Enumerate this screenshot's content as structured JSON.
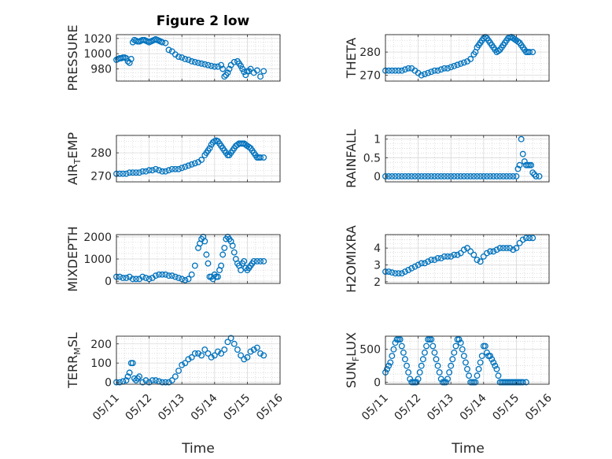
{
  "figure": {
    "title": "Figure 2 low",
    "marker_color": "#0072BD"
  },
  "x_axis": {
    "label": "Time",
    "tick_labels": [
      "05/11",
      "05/12",
      "05/13",
      "05/14",
      "05/15",
      "05/16"
    ],
    "range_days": [
      0,
      5
    ]
  },
  "chart_data": [
    {
      "type": "scatter",
      "name": "pressure",
      "ylabel": {
        "pre": "PRESSURE",
        "sub": "",
        "post": ""
      },
      "ylim": [
        964,
        1025
      ],
      "yticks": [
        980,
        1000,
        1020
      ],
      "grid": true,
      "x": [
        0.0,
        0.05,
        0.1,
        0.15,
        0.2,
        0.25,
        0.3,
        0.35,
        0.4,
        0.45,
        0.5,
        0.55,
        0.6,
        0.65,
        0.7,
        0.75,
        0.8,
        0.85,
        0.9,
        0.95,
        1.0,
        1.05,
        1.1,
        1.15,
        1.2,
        1.25,
        1.3,
        1.35,
        1.4,
        1.5,
        1.6,
        1.7,
        1.8,
        1.9,
        2.0,
        2.1,
        2.2,
        2.3,
        2.4,
        2.5,
        2.6,
        2.7,
        2.8,
        2.9,
        3.0,
        3.1,
        3.2,
        3.25,
        3.3,
        3.35,
        3.4,
        3.45,
        3.5,
        3.6,
        3.7,
        3.75,
        3.8,
        3.85,
        3.9,
        3.95,
        4.0,
        4.05,
        4.1,
        4.2,
        4.3,
        4.4,
        4.5
      ],
      "y": [
        992,
        993,
        994,
        994,
        995,
        995,
        994,
        990,
        988,
        993,
        1015,
        1018,
        1017,
        1016,
        1016,
        1017,
        1018,
        1018,
        1017,
        1016,
        1015,
        1016,
        1017,
        1018,
        1019,
        1018,
        1017,
        1016,
        1015,
        1014,
        1005,
        1003,
        999,
        996,
        995,
        993,
        992,
        990,
        989,
        988,
        987,
        986,
        985,
        984,
        983,
        983,
        985,
        980,
        970,
        972,
        975,
        980,
        985,
        989,
        990,
        987,
        984,
        980,
        976,
        972,
        977,
        977,
        980,
        975,
        978,
        970,
        977
      ]
    },
    {
      "type": "scatter",
      "name": "theta",
      "ylabel": {
        "pre": "THETA",
        "sub": "",
        "post": ""
      },
      "ylim": [
        267.5,
        287.5
      ],
      "yticks": [
        270,
        280
      ],
      "grid": true,
      "x": [
        0.0,
        0.1,
        0.2,
        0.3,
        0.4,
        0.5,
        0.6,
        0.7,
        0.8,
        0.9,
        1.0,
        1.1,
        1.2,
        1.3,
        1.4,
        1.5,
        1.6,
        1.7,
        1.8,
        1.9,
        2.0,
        2.1,
        2.2,
        2.3,
        2.4,
        2.5,
        2.6,
        2.7,
        2.75,
        2.8,
        2.85,
        2.9,
        2.95,
        3.0,
        3.05,
        3.1,
        3.15,
        3.2,
        3.25,
        3.3,
        3.35,
        3.4,
        3.45,
        3.5,
        3.55,
        3.6,
        3.65,
        3.7,
        3.75,
        3.8,
        3.85,
        3.9,
        3.95,
        4.0,
        4.05,
        4.1,
        4.15,
        4.2,
        4.25,
        4.3,
        4.35,
        4.4,
        4.5
      ],
      "y": [
        272,
        272,
        272,
        272,
        272,
        272,
        272.5,
        273,
        273,
        272,
        271,
        270,
        270.5,
        271,
        271.5,
        272,
        272,
        272.5,
        273,
        273,
        273.5,
        274,
        274.5,
        275,
        275.5,
        276,
        277,
        279,
        280,
        282,
        283,
        284,
        285,
        286,
        286.5,
        286,
        285,
        284,
        283,
        282,
        281,
        280,
        280.5,
        281,
        282,
        283,
        284,
        285,
        286,
        286.3,
        286.5,
        286,
        285.5,
        285,
        284.5,
        284,
        283,
        282,
        281,
        280,
        280,
        280,
        280
      ]
    },
    {
      "type": "scatter",
      "name": "air_temp",
      "ylabel": {
        "pre": "AIR",
        "sub": "T",
        "post": "EMP"
      },
      "ylim": [
        267.5,
        287.5
      ],
      "yticks": [
        270,
        280
      ],
      "grid": true,
      "x": [
        0.0,
        0.1,
        0.2,
        0.3,
        0.4,
        0.5,
        0.6,
        0.7,
        0.8,
        0.9,
        1.0,
        1.1,
        1.2,
        1.3,
        1.4,
        1.5,
        1.6,
        1.7,
        1.8,
        1.9,
        2.0,
        2.1,
        2.2,
        2.3,
        2.4,
        2.5,
        2.6,
        2.7,
        2.75,
        2.8,
        2.85,
        2.9,
        2.95,
        3.0,
        3.05,
        3.1,
        3.15,
        3.2,
        3.25,
        3.3,
        3.35,
        3.4,
        3.45,
        3.5,
        3.55,
        3.6,
        3.65,
        3.7,
        3.75,
        3.8,
        3.85,
        3.9,
        3.95,
        4.0,
        4.05,
        4.1,
        4.15,
        4.2,
        4.25,
        4.3,
        4.35,
        4.4,
        4.5
      ],
      "y": [
        271,
        271,
        271,
        271,
        271.5,
        271.5,
        271.5,
        271.5,
        272,
        272,
        272.5,
        272.5,
        273,
        272.5,
        272,
        272,
        272.5,
        273,
        273,
        273,
        273.5,
        274,
        274.5,
        275,
        275.5,
        276,
        277,
        279,
        280,
        281,
        282,
        283.5,
        284.5,
        285,
        285.3,
        285,
        284,
        283,
        282,
        281,
        280,
        279,
        279,
        280,
        281,
        282,
        283,
        283.5,
        284,
        284,
        284,
        284,
        283.5,
        283,
        282.5,
        282,
        281,
        280,
        279,
        278,
        278,
        278,
        278
      ]
    },
    {
      "type": "scatter",
      "name": "rainfall",
      "ylabel": {
        "pre": "RAINFALL",
        "sub": "",
        "post": ""
      },
      "ylim": [
        -0.15,
        1.1
      ],
      "yticks": [
        0,
        0.5,
        1
      ],
      "grid": true,
      "x": [
        0.0,
        0.1,
        0.2,
        0.3,
        0.4,
        0.5,
        0.6,
        0.7,
        0.8,
        0.9,
        1.0,
        1.1,
        1.2,
        1.3,
        1.4,
        1.5,
        1.6,
        1.7,
        1.8,
        1.9,
        2.0,
        2.1,
        2.2,
        2.3,
        2.4,
        2.5,
        2.6,
        2.7,
        2.8,
        2.9,
        3.0,
        3.1,
        3.2,
        3.3,
        3.4,
        3.5,
        3.6,
        3.7,
        3.8,
        3.9,
        4.0,
        4.05,
        4.1,
        4.15,
        4.2,
        4.25,
        4.3,
        4.35,
        4.4,
        4.45,
        4.5,
        4.55,
        4.6,
        4.7
      ],
      "y": [
        0,
        0,
        0,
        0,
        0,
        0,
        0,
        0,
        0,
        0,
        0,
        0,
        0,
        0,
        0,
        0,
        0,
        0,
        0,
        0,
        0,
        0,
        0,
        0,
        0,
        0,
        0,
        0,
        0,
        0,
        0,
        0,
        0,
        0,
        0,
        0,
        0,
        0,
        0,
        0,
        0,
        0.2,
        0.3,
        1.0,
        0.6,
        0.4,
        0.3,
        0.3,
        0.3,
        0.3,
        0.1,
        0.05,
        0,
        0
      ]
    },
    {
      "type": "scatter",
      "name": "mixdepth",
      "ylabel": {
        "pre": "MIXDEPTH",
        "sub": "",
        "post": ""
      },
      "ylim": [
        -100,
        2100
      ],
      "yticks": [
        0,
        1000,
        2000
      ],
      "grid": true,
      "x": [
        0.0,
        0.1,
        0.2,
        0.3,
        0.4,
        0.5,
        0.6,
        0.7,
        0.8,
        0.9,
        1.0,
        1.1,
        1.2,
        1.3,
        1.4,
        1.5,
        1.6,
        1.7,
        1.8,
        1.9,
        2.0,
        2.1,
        2.2,
        2.3,
        2.4,
        2.5,
        2.55,
        2.6,
        2.65,
        2.7,
        2.75,
        2.8,
        2.85,
        2.9,
        2.95,
        3.0,
        3.05,
        3.1,
        3.15,
        3.2,
        3.25,
        3.3,
        3.35,
        3.4,
        3.45,
        3.5,
        3.55,
        3.6,
        3.65,
        3.7,
        3.75,
        3.8,
        3.85,
        3.9,
        3.95,
        4.0,
        4.05,
        4.1,
        4.15,
        4.2,
        4.3,
        4.4,
        4.5
      ],
      "y": [
        200,
        200,
        150,
        150,
        200,
        100,
        100,
        100,
        200,
        150,
        100,
        150,
        250,
        300,
        300,
        300,
        250,
        250,
        200,
        150,
        100,
        50,
        100,
        300,
        700,
        1500,
        1700,
        1900,
        2000,
        1800,
        1200,
        800,
        200,
        200,
        100,
        300,
        200,
        200,
        500,
        700,
        1200,
        1500,
        1900,
        2000,
        1900,
        1800,
        1600,
        1300,
        1000,
        800,
        700,
        500,
        800,
        900,
        600,
        500,
        600,
        700,
        800,
        900,
        900,
        900,
        900
      ]
    },
    {
      "type": "scatter",
      "name": "h2omixra",
      "ylabel": {
        "pre": "H2OMIXRA",
        "sub": "",
        "post": ""
      },
      "ylim": [
        1.9,
        4.8
      ],
      "yticks": [
        2,
        3,
        4
      ],
      "grid": true,
      "x": [
        0.0,
        0.1,
        0.2,
        0.3,
        0.4,
        0.5,
        0.6,
        0.7,
        0.8,
        0.9,
        1.0,
        1.1,
        1.2,
        1.3,
        1.4,
        1.5,
        1.6,
        1.7,
        1.8,
        1.9,
        2.0,
        2.1,
        2.2,
        2.3,
        2.4,
        2.5,
        2.6,
        2.7,
        2.8,
        2.9,
        3.0,
        3.1,
        3.2,
        3.3,
        3.4,
        3.5,
        3.6,
        3.7,
        3.8,
        3.9,
        4.0,
        4.1,
        4.2,
        4.3,
        4.4,
        4.5
      ],
      "y": [
        2.6,
        2.6,
        2.55,
        2.5,
        2.5,
        2.5,
        2.6,
        2.7,
        2.8,
        2.9,
        3.0,
        3.1,
        3.1,
        3.2,
        3.3,
        3.3,
        3.4,
        3.4,
        3.5,
        3.5,
        3.5,
        3.6,
        3.6,
        3.7,
        3.9,
        4.0,
        3.8,
        3.6,
        3.3,
        3.2,
        3.5,
        3.7,
        3.8,
        3.8,
        3.9,
        4.0,
        4.0,
        4.0,
        4.0,
        3.9,
        4.0,
        4.3,
        4.5,
        4.6,
        4.6,
        4.6
      ]
    },
    {
      "type": "scatter",
      "name": "terr_msl",
      "ylabel": {
        "pre": "TERR",
        "sub": "M",
        "post": "SL"
      },
      "ylim": [
        -10,
        240
      ],
      "yticks": [
        0,
        100,
        200
      ],
      "grid": true,
      "x": [
        0.0,
        0.1,
        0.2,
        0.3,
        0.35,
        0.4,
        0.45,
        0.5,
        0.55,
        0.6,
        0.65,
        0.7,
        0.8,
        0.9,
        1.0,
        1.1,
        1.2,
        1.3,
        1.4,
        1.5,
        1.6,
        1.7,
        1.8,
        1.9,
        2.0,
        2.1,
        2.2,
        2.3,
        2.4,
        2.5,
        2.6,
        2.7,
        2.8,
        2.9,
        3.0,
        3.1,
        3.2,
        3.3,
        3.4,
        3.5,
        3.6,
        3.7,
        3.8,
        3.9,
        4.0,
        4.1,
        4.2,
        4.3,
        4.4,
        4.5
      ],
      "y": [
        0,
        0,
        5,
        10,
        30,
        50,
        100,
        100,
        20,
        10,
        20,
        30,
        0,
        10,
        0,
        10,
        10,
        5,
        0,
        0,
        0,
        10,
        30,
        60,
        90,
        100,
        120,
        130,
        150,
        150,
        140,
        170,
        150,
        130,
        140,
        160,
        150,
        170,
        210,
        230,
        200,
        170,
        140,
        120,
        130,
        160,
        170,
        180,
        150,
        140
      ]
    },
    {
      "type": "scatter",
      "name": "sun_flux",
      "ylabel": {
        "pre": "SUN",
        "sub": "F",
        "post": "LUX"
      },
      "ylim": [
        -30,
        700
      ],
      "yticks": [
        0,
        500
      ],
      "grid": true,
      "x": [
        0.0,
        0.05,
        0.1,
        0.15,
        0.2,
        0.25,
        0.3,
        0.35,
        0.4,
        0.45,
        0.5,
        0.55,
        0.6,
        0.65,
        0.7,
        0.75,
        0.8,
        0.85,
        0.9,
        0.95,
        1.0,
        1.05,
        1.1,
        1.15,
        1.2,
        1.25,
        1.3,
        1.35,
        1.4,
        1.45,
        1.5,
        1.55,
        1.6,
        1.65,
        1.7,
        1.75,
        1.8,
        1.85,
        1.9,
        1.95,
        2.0,
        2.05,
        2.1,
        2.15,
        2.2,
        2.25,
        2.3,
        2.35,
        2.4,
        2.45,
        2.5,
        2.55,
        2.6,
        2.65,
        2.7,
        2.75,
        2.8,
        2.85,
        2.9,
        2.95,
        3.0,
        3.05,
        3.1,
        3.15,
        3.2,
        3.25,
        3.3,
        3.35,
        3.4,
        3.45,
        3.5,
        3.55,
        3.6,
        3.65,
        3.7,
        3.75,
        3.8,
        3.85,
        3.9,
        3.95,
        4.0,
        4.05,
        4.1,
        4.15,
        4.2,
        4.3
      ],
      "y": [
        150,
        200,
        250,
        300,
        400,
        500,
        600,
        650,
        650,
        650,
        550,
        450,
        350,
        250,
        150,
        50,
        0,
        0,
        0,
        0,
        50,
        150,
        250,
        350,
        450,
        550,
        650,
        650,
        650,
        550,
        450,
        350,
        250,
        150,
        50,
        0,
        0,
        0,
        50,
        150,
        250,
        350,
        450,
        550,
        650,
        650,
        600,
        500,
        400,
        300,
        200,
        100,
        0,
        0,
        0,
        0,
        100,
        200,
        300,
        400,
        550,
        550,
        450,
        400,
        400,
        350,
        300,
        250,
        200,
        100,
        0,
        0,
        0,
        0,
        0,
        0,
        0,
        0,
        0,
        0,
        0,
        0,
        0,
        0,
        0,
        0
      ]
    }
  ]
}
